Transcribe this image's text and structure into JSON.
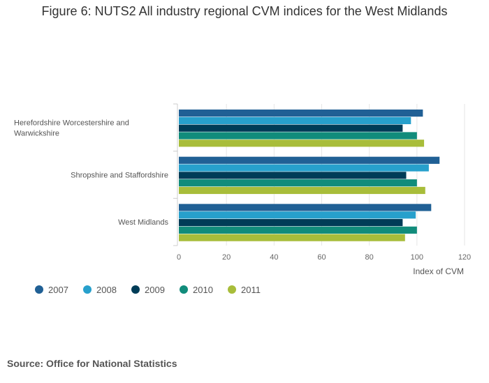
{
  "chart_data": {
    "type": "bar",
    "orientation": "horizontal",
    "title": "Figure 6: NUTS2 All industry regional CVM indices for the West Midlands",
    "categories": [
      [
        "Herefordshire Worcestershire and",
        "Warwickshire"
      ],
      [
        "Shropshire and Staffordshire"
      ],
      [
        "West Midlands"
      ]
    ],
    "series": [
      {
        "name": "2007",
        "color": "#206095",
        "values": [
          102.5,
          109.5,
          106
        ]
      },
      {
        "name": "2008",
        "color": "#27a0cc",
        "values": [
          97.5,
          105,
          99.5
        ]
      },
      {
        "name": "2009",
        "color": "#003c57",
        "values": [
          94,
          95.5,
          94
        ]
      },
      {
        "name": "2010",
        "color": "#118c7b",
        "values": [
          100,
          100,
          100
        ]
      },
      {
        "name": "2011",
        "color": "#a8bd3a",
        "values": [
          103,
          103.5,
          95
        ]
      }
    ],
    "xlabel": "Index of CVM",
    "ylabel": "",
    "xlim": [
      0,
      120
    ],
    "xticks": [
      0,
      20,
      40,
      60,
      80,
      100,
      120
    ],
    "grid": true,
    "legend_position": "bottom-left"
  },
  "source": "Source: Office for National Statistics"
}
